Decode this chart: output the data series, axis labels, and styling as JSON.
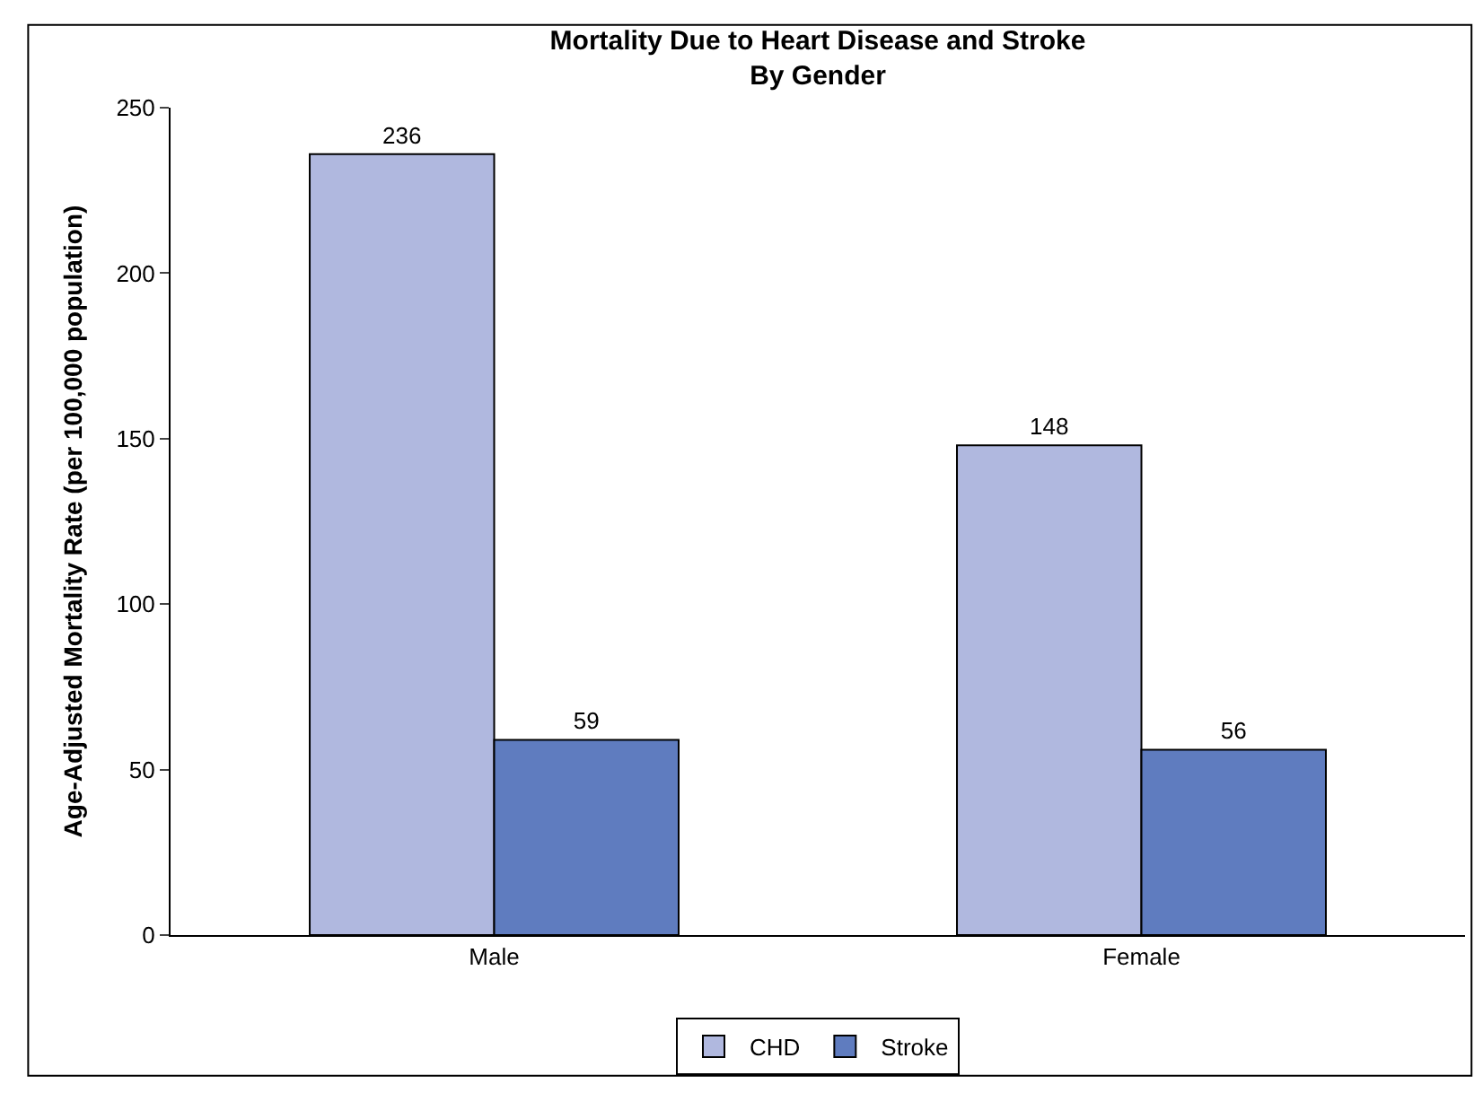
{
  "chart_data": {
    "type": "bar",
    "title": "Mortality Due to Heart Disease and Stroke\nBy Gender",
    "ylabel": "Age-Adjusted Mortality Rate (per 100,000 population)",
    "categories": [
      "Male",
      "Female"
    ],
    "series": [
      {
        "name": "CHD",
        "color": "#b0b8df",
        "values": [
          236,
          148
        ]
      },
      {
        "name": "Stroke",
        "color": "#5f7cbf",
        "values": [
          59,
          56
        ]
      }
    ],
    "ylim": [
      0,
      250
    ],
    "yticks": [
      0,
      50,
      100,
      150,
      200,
      250
    ],
    "data_labels": true,
    "legend": "bottom"
  }
}
